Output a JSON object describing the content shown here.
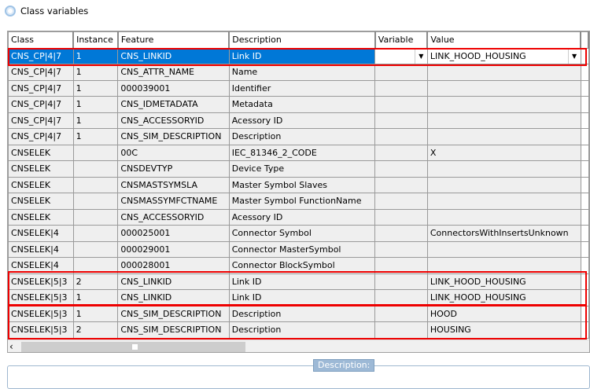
{
  "window": {
    "title": "Class variables",
    "icon": "app-circle-icon"
  },
  "table": {
    "columns": [
      "Class",
      "Instance",
      "Feature",
      "Description",
      "Variable",
      "Value"
    ],
    "rows": [
      [
        "CNS_CP|4|7",
        "1",
        "CNS_LINKID",
        "Link ID",
        "",
        "LINK_HOOD_HOUSING"
      ],
      [
        "CNS_CP|4|7",
        "1",
        "CNS_ATTR_NAME",
        "Name",
        "",
        ""
      ],
      [
        "CNS_CP|4|7",
        "1",
        "000039001",
        "Identifier",
        "",
        ""
      ],
      [
        "CNS_CP|4|7",
        "1",
        "CNS_IDMETADATA",
        "Metadata",
        "",
        ""
      ],
      [
        "CNS_CP|4|7",
        "1",
        "CNS_ACCESSORYID",
        "Acessory ID",
        "",
        ""
      ],
      [
        "CNS_CP|4|7",
        "1",
        "CNS_SIM_DESCRIPTION",
        "Description",
        "",
        ""
      ],
      [
        "CNSELEK",
        "",
        "00C",
        "IEC_81346_2_CODE",
        "",
        "X"
      ],
      [
        "CNSELEK",
        "",
        "CNSDEVTYP",
        "Device Type",
        "",
        ""
      ],
      [
        "CNSELEK",
        "",
        "CNSMASTSYMSLA",
        "Master Symbol Slaves",
        "",
        ""
      ],
      [
        "CNSELEK",
        "",
        "CNSMASSYMFCTNAME",
        "Master Symbol FunctionName",
        "",
        ""
      ],
      [
        "CNSELEK",
        "",
        "CNS_ACCESSORYID",
        "Acessory ID",
        "",
        ""
      ],
      [
        "CNSELEK|4",
        "",
        "000025001",
        "Connector Symbol",
        "",
        "ConnectorsWithInsertsUnknown"
      ],
      [
        "CNSELEK|4",
        "",
        "000029001",
        "Connector MasterSymbol",
        "",
        ""
      ],
      [
        "CNSELEK|4",
        "",
        "000028001",
        "Connector BlockSymbol",
        "",
        ""
      ],
      [
        "CNSELEK|5|3",
        "2",
        "CNS_LINKID",
        "Link ID",
        "",
        "LINK_HOOD_HOUSING"
      ],
      [
        "CNSELEK|5|3",
        "1",
        "CNS_LINKID",
        "Link ID",
        "",
        "LINK_HOOD_HOUSING"
      ],
      [
        "CNSELEK|5|3",
        "1",
        "CNS_SIM_DESCRIPTION",
        "Description",
        "",
        "HOOD"
      ],
      [
        "CNSELEK|5|3",
        "2",
        "CNS_SIM_DESCRIPTION",
        "Description",
        "",
        "HOUSING"
      ]
    ],
    "selected_row": 0
  },
  "colors": {
    "selection": "#0078d7",
    "highlight_box": "#e00000"
  },
  "description_group": {
    "label": "Description:"
  }
}
